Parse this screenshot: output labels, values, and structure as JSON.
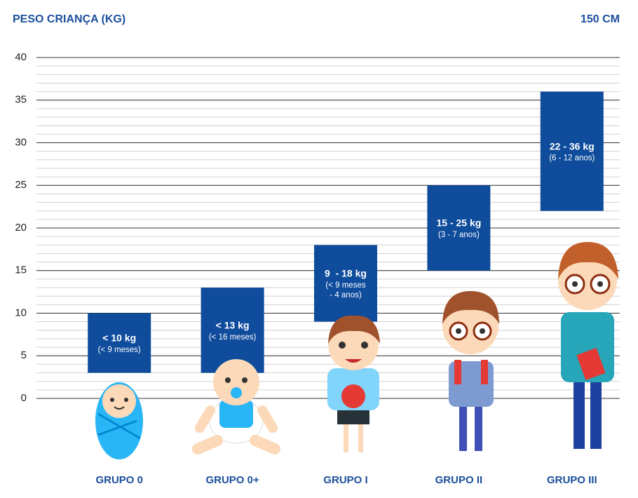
{
  "chart_data": {
    "type": "range-bar",
    "title": "PESO CRIANÇA (KG)",
    "annotation": "150 CM",
    "categories": [
      "GRUPO 0",
      "GRUPO 0+",
      "GRUPO I",
      "GRUPO II",
      "GRUPO III"
    ],
    "low": [
      3,
      3,
      9,
      15,
      22
    ],
    "high": [
      10,
      13,
      18,
      25,
      36
    ],
    "labels": [
      "< 10 kg",
      "< 13 kg",
      "9  - 18 kg",
      "15 - 25 kg",
      "22 - 36 kg"
    ],
    "sublabels": [
      [
        "(< 9 meses)"
      ],
      [
        "(< 16 meses)"
      ],
      [
        "(< 9 meses",
        "- 4 anos)"
      ],
      [
        "(3 - 7 anos)"
      ],
      [
        "(6 - 12 anos)"
      ]
    ],
    "color": "#0f4c9c",
    "ylim": [
      0,
      40
    ],
    "yticks": [
      0,
      5,
      10,
      15,
      20,
      25,
      30,
      35,
      40
    ],
    "minor_grid_step": 1,
    "grid": true
  }
}
